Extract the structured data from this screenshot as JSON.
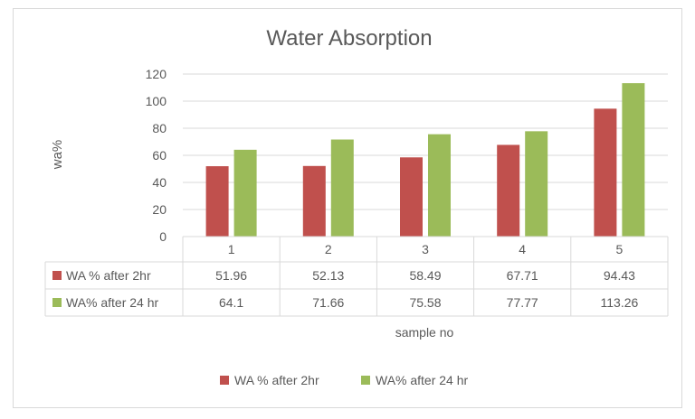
{
  "chart_data": {
    "type": "bar",
    "title": "Water Absorption",
    "xlabel": "sample no",
    "ylabel": "wa%",
    "ylim": [
      0,
      120
    ],
    "yticks": [
      0,
      20,
      40,
      60,
      80,
      100,
      120
    ],
    "grid": true,
    "legend_position": "bottom",
    "categories": [
      "1",
      "2",
      "3",
      "4",
      "5"
    ],
    "series": [
      {
        "name": "WA % after 2hr",
        "color": "#c0504d",
        "values": [
          51.96,
          52.13,
          58.49,
          67.71,
          94.43
        ]
      },
      {
        "name": "WA% after 24 hr",
        "color": "#9bbb59",
        "values": [
          64.1,
          71.66,
          75.58,
          77.77,
          113.26
        ]
      }
    ]
  }
}
